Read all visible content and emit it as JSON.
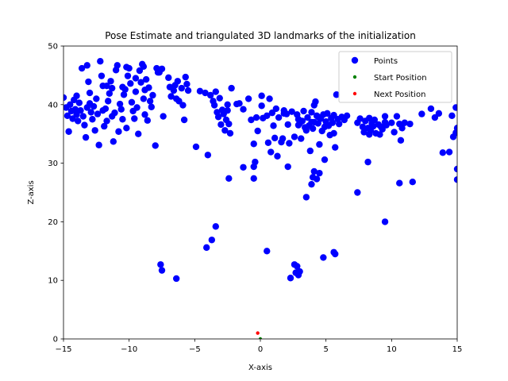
{
  "chart_data": {
    "type": "scatter",
    "title": "Pose Estimate and triangulated 3D landmarks of the initialization",
    "xlabel": "X-axis",
    "ylabel": "Z-axis",
    "xlim": [
      -15,
      15
    ],
    "ylim": [
      0,
      50
    ],
    "xticks": [
      -15,
      -10,
      -5,
      0,
      5,
      10,
      15
    ],
    "yticks": [
      0,
      10,
      20,
      30,
      40,
      50
    ],
    "xtick_labels": [
      "−15",
      "−10",
      "−5",
      "0",
      "5",
      "10",
      "15"
    ],
    "ytick_labels": [
      "0",
      "10",
      "20",
      "30",
      "40",
      "50"
    ],
    "grid": false,
    "legend_position": "top-right",
    "series": [
      {
        "name": "Points",
        "color": "#0000ff",
        "marker": "circle-large",
        "points": [
          [
            -15.0,
            41.2
          ],
          [
            -14.8,
            39.5
          ],
          [
            -14.7,
            38.1
          ],
          [
            -14.6,
            35.4
          ],
          [
            -14.5,
            40.0
          ],
          [
            -14.4,
            38.9
          ],
          [
            -14.3,
            37.6
          ],
          [
            -14.2,
            40.8
          ],
          [
            -14.1,
            39.2
          ],
          [
            -14.0,
            38.3
          ],
          [
            -13.9,
            37.2
          ],
          [
            -13.8,
            40.3
          ],
          [
            -13.7,
            39.0
          ],
          [
            -13.6,
            46.2
          ],
          [
            -13.5,
            38.0
          ],
          [
            -13.4,
            36.5
          ],
          [
            -13.3,
            34.4
          ],
          [
            -13.2,
            46.7
          ],
          [
            -13.1,
            43.9
          ],
          [
            -13.0,
            40.2
          ],
          [
            -12.9,
            38.7
          ],
          [
            -12.8,
            37.5
          ],
          [
            -12.7,
            39.7
          ],
          [
            -12.6,
            35.6
          ],
          [
            -12.5,
            41.0
          ],
          [
            -12.4,
            38.4
          ],
          [
            -12.3,
            33.1
          ],
          [
            -12.2,
            47.4
          ],
          [
            -12.1,
            44.9
          ],
          [
            -12.0,
            43.2
          ],
          [
            -11.9,
            36.3
          ],
          [
            -11.8,
            39.3
          ],
          [
            -11.7,
            37.2
          ],
          [
            -11.6,
            40.6
          ],
          [
            -11.5,
            41.9
          ],
          [
            -11.4,
            44.0
          ],
          [
            -11.3,
            42.8
          ],
          [
            -11.2,
            33.7
          ],
          [
            -11.1,
            38.6
          ],
          [
            -11.0,
            45.9
          ],
          [
            -10.9,
            46.7
          ],
          [
            -10.8,
            35.4
          ],
          [
            -10.7,
            40.1
          ],
          [
            -10.6,
            39.2
          ],
          [
            -10.5,
            37.5
          ],
          [
            -10.4,
            41.7
          ],
          [
            -10.3,
            42.6
          ],
          [
            -10.2,
            36.0
          ],
          [
            -10.1,
            44.9
          ],
          [
            -10.0,
            46.2
          ],
          [
            -9.9,
            43.6
          ],
          [
            -9.8,
            40.4
          ],
          [
            -9.7,
            38.9
          ],
          [
            -9.6,
            37.6
          ],
          [
            -9.5,
            42.2
          ],
          [
            -9.4,
            39.5
          ],
          [
            -9.3,
            35.0
          ],
          [
            -9.2,
            45.8
          ],
          [
            -9.1,
            43.8
          ],
          [
            -9.0,
            46.9
          ],
          [
            -8.9,
            41.0
          ],
          [
            -8.8,
            38.3
          ],
          [
            -8.7,
            44.3
          ],
          [
            -8.6,
            37.3
          ],
          [
            -8.5,
            42.9
          ],
          [
            -8.4,
            40.6
          ],
          [
            -8.3,
            39.6
          ],
          [
            -8.2,
            41.6
          ],
          [
            -8.0,
            33.0
          ],
          [
            -7.9,
            46.2
          ],
          [
            -7.7,
            45.5
          ],
          [
            -7.5,
            46.1
          ],
          [
            -7.4,
            38.0
          ],
          [
            -7.0,
            44.6
          ],
          [
            -6.9,
            43.0
          ],
          [
            -6.8,
            41.4
          ],
          [
            -6.6,
            42.4
          ],
          [
            -6.5,
            43.3
          ],
          [
            -6.4,
            41.0
          ],
          [
            -6.2,
            40.6
          ],
          [
            -6.0,
            42.8
          ],
          [
            -5.9,
            39.9
          ],
          [
            -5.8,
            37.4
          ],
          [
            -5.7,
            44.7
          ],
          [
            -5.6,
            43.5
          ],
          [
            -5.5,
            42.4
          ],
          [
            -4.9,
            32.8
          ],
          [
            -4.6,
            42.3
          ],
          [
            -4.2,
            42.0
          ],
          [
            -4.0,
            31.4
          ],
          [
            -3.8,
            41.6
          ],
          [
            -3.6,
            40.6
          ],
          [
            -3.5,
            39.9
          ],
          [
            -3.4,
            42.2
          ],
          [
            -3.3,
            38.7
          ],
          [
            -3.2,
            37.9
          ],
          [
            -3.1,
            41.1
          ],
          [
            -3.0,
            36.6
          ],
          [
            -2.9,
            39.1
          ],
          [
            -2.8,
            38.4
          ],
          [
            -2.7,
            35.6
          ],
          [
            -2.6,
            37.4
          ],
          [
            -2.5,
            40.0
          ],
          [
            -2.4,
            36.7
          ],
          [
            -2.3,
            35.1
          ],
          [
            -2.2,
            42.8
          ],
          [
            -1.8,
            40.1
          ],
          [
            -1.3,
            39.2
          ],
          [
            -0.9,
            41.0
          ],
          [
            -0.7,
            37.4
          ],
          [
            -0.5,
            33.3
          ],
          [
            -0.3,
            37.8
          ],
          [
            -0.2,
            35.5
          ],
          [
            0.1,
            39.8
          ],
          [
            0.2,
            37.7
          ],
          [
            0.5,
            38.1
          ],
          [
            0.6,
            33.5
          ],
          [
            0.7,
            41.0
          ],
          [
            0.9,
            38.6
          ],
          [
            1.0,
            36.4
          ],
          [
            1.1,
            34.3
          ],
          [
            1.2,
            39.3
          ],
          [
            1.3,
            31.2
          ],
          [
            1.4,
            37.8
          ],
          [
            1.6,
            33.6
          ],
          [
            1.7,
            34.2
          ],
          [
            1.8,
            39.0
          ],
          [
            2.0,
            38.4
          ],
          [
            2.1,
            36.6
          ],
          [
            2.2,
            33.4
          ],
          [
            2.4,
            38.8
          ],
          [
            2.6,
            34.5
          ],
          [
            2.8,
            38.3
          ],
          [
            2.9,
            37.5
          ],
          [
            3.0,
            36.8
          ],
          [
            3.1,
            34.2
          ],
          [
            3.2,
            37.2
          ],
          [
            3.3,
            38.9
          ],
          [
            3.4,
            36.1
          ],
          [
            3.5,
            35.6
          ],
          [
            3.6,
            37.8
          ],
          [
            3.7,
            36.4
          ],
          [
            3.8,
            32.1
          ],
          [
            3.9,
            38.7
          ],
          [
            4.0,
            35.9
          ],
          [
            4.1,
            37.0
          ],
          [
            4.2,
            40.5
          ],
          [
            4.3,
            38.1
          ],
          [
            4.4,
            36.8
          ],
          [
            4.5,
            33.2
          ],
          [
            4.6,
            37.6
          ],
          [
            4.7,
            35.5
          ],
          [
            4.8,
            38.3
          ],
          [
            4.9,
            36.2
          ],
          [
            5.0,
            37.1
          ],
          [
            5.1,
            38.5
          ],
          [
            5.2,
            36.4
          ],
          [
            5.3,
            34.8
          ],
          [
            5.4,
            37.7
          ],
          [
            5.5,
            36.9
          ],
          [
            5.6,
            38.2
          ],
          [
            5.7,
            32.7
          ],
          [
            5.8,
            41.7
          ],
          [
            6.0,
            36.7
          ],
          [
            6.2,
            37.9
          ],
          [
            6.4,
            37.4
          ],
          [
            6.6,
            38.1
          ],
          [
            7.4,
            36.9
          ],
          [
            7.6,
            37.6
          ],
          [
            7.8,
            36.2
          ],
          [
            7.9,
            35.3
          ],
          [
            8.0,
            37.2
          ],
          [
            8.2,
            36.0
          ],
          [
            8.3,
            37.7
          ],
          [
            8.4,
            35.6
          ],
          [
            8.6,
            36.3
          ],
          [
            8.7,
            37.4
          ],
          [
            8.8,
            35.1
          ],
          [
            9.0,
            36.6
          ],
          [
            9.1,
            34.9
          ],
          [
            9.2,
            36.2
          ],
          [
            9.3,
            35.8
          ],
          [
            9.5,
            37.0
          ],
          [
            9.6,
            36.5
          ],
          [
            10.0,
            36.9
          ],
          [
            10.2,
            35.3
          ],
          [
            10.4,
            38.0
          ],
          [
            10.6,
            36.7
          ],
          [
            10.8,
            36.0
          ],
          [
            11.0,
            36.9
          ],
          [
            11.4,
            36.7
          ],
          [
            12.3,
            38.4
          ],
          [
            13.0,
            39.3
          ],
          [
            13.3,
            37.8
          ],
          [
            13.6,
            38.5
          ],
          [
            14.6,
            38.1
          ],
          [
            14.7,
            34.5
          ],
          [
            14.9,
            35.2
          ],
          [
            15.0,
            36.0
          ],
          [
            14.9,
            39.5
          ],
          [
            0.1,
            41.5
          ],
          [
            1.8,
            38.5
          ],
          [
            9.5,
            38.0
          ],
          [
            -13.0,
            42.0
          ],
          [
            -10.5,
            43.0
          ],
          [
            -9.5,
            44.5
          ],
          [
            -8.8,
            42.5
          ],
          [
            -12.0,
            39.0
          ],
          [
            -11.3,
            38.0
          ],
          [
            -2.5,
            39.0
          ],
          [
            -6.3,
            44.0
          ],
          [
            -7.8,
            45.5
          ],
          [
            -14.0,
            41.5
          ],
          [
            -13.2,
            39.5
          ],
          [
            3.9,
            37.0
          ],
          [
            4.4,
            37.9
          ],
          [
            8.5,
            36.8
          ],
          [
            10.7,
            33.9
          ],
          [
            5.9,
            37.5
          ],
          [
            -1.6,
            40.2
          ],
          [
            -8.9,
            46.5
          ],
          [
            -10.2,
            46.4
          ],
          [
            -11.7,
            43.2
          ],
          [
            2.9,
            36.5
          ],
          [
            8.3,
            34.9
          ],
          [
            4.1,
            39.9
          ],
          [
            5.6,
            35.1
          ],
          [
            14.4,
            31.9
          ],
          [
            13.9,
            31.8
          ],
          [
            15.0,
            27.2
          ],
          [
            15.0,
            29.0
          ],
          [
            11.6,
            26.8
          ],
          [
            10.6,
            26.6
          ],
          [
            8.2,
            30.2
          ],
          [
            7.4,
            25.0
          ],
          [
            9.5,
            20.0
          ],
          [
            4.1,
            28.6
          ],
          [
            4.0,
            27.6
          ],
          [
            3.9,
            26.4
          ],
          [
            4.3,
            27.3
          ],
          [
            4.5,
            28.3
          ],
          [
            4.9,
            30.6
          ],
          [
            3.5,
            24.2
          ],
          [
            2.1,
            29.4
          ],
          [
            0.8,
            31.9
          ],
          [
            -0.4,
            30.2
          ],
          [
            -0.5,
            29.4
          ],
          [
            -0.5,
            27.4
          ],
          [
            -1.3,
            29.3
          ],
          [
            -2.4,
            27.4
          ],
          [
            -3.4,
            19.2
          ],
          [
            -3.7,
            16.9
          ],
          [
            -4.1,
            15.6
          ],
          [
            -7.6,
            12.7
          ],
          [
            -7.5,
            11.7
          ],
          [
            -6.4,
            10.3
          ],
          [
            0.5,
            15.0
          ],
          [
            2.3,
            10.4
          ],
          [
            2.6,
            12.7
          ],
          [
            2.8,
            12.4
          ],
          [
            2.7,
            11.3
          ],
          [
            2.9,
            10.9
          ],
          [
            3.0,
            11.5
          ],
          [
            4.8,
            13.9
          ],
          [
            5.6,
            14.8
          ],
          [
            5.7,
            14.5
          ]
        ]
      },
      {
        "name": "Start Position",
        "color": "#008000",
        "marker": "circle-small",
        "points": [
          [
            0.0,
            0.0
          ]
        ]
      },
      {
        "name": "Next Position",
        "color": "#ff0000",
        "marker": "circle-small",
        "points": [
          [
            -0.2,
            1.0
          ]
        ]
      }
    ]
  }
}
